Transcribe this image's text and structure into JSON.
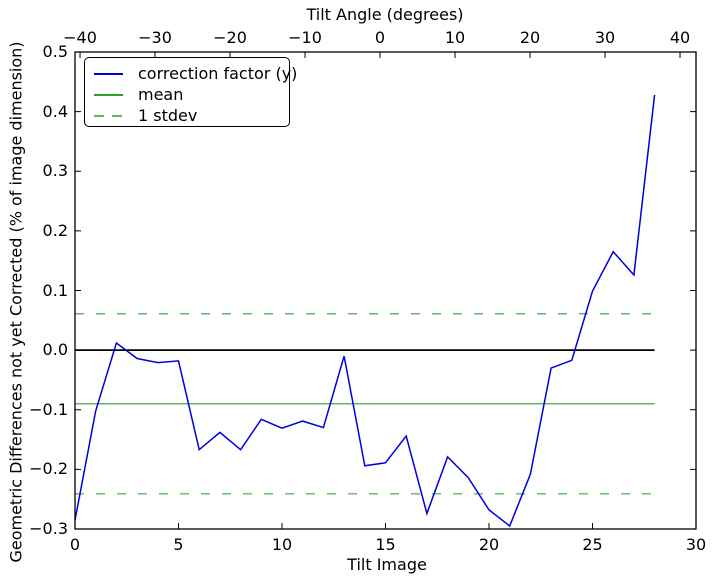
{
  "chart_data": {
    "type": "line",
    "title": "Tilt Angle (degrees)",
    "xlabel": "Tilt Image",
    "ylabel": "Geometric Differences not yet Corrected (% of image dimension)",
    "xlim": [
      0,
      30
    ],
    "ylim": [
      -0.3,
      0.5
    ],
    "grid": false,
    "legend_position": "upper left",
    "x_ticks": {
      "values": [
        0,
        5,
        10,
        15,
        20,
        25,
        30
      ],
      "labels": [
        "0",
        "5",
        "10",
        "15",
        "20",
        "25",
        "30"
      ]
    },
    "y_ticks": {
      "values": [
        0.5,
        0.4,
        0.3,
        0.2,
        0.1,
        0.0,
        -0.1,
        -0.2,
        -0.3
      ],
      "labels": [
        "0.5",
        "0.4",
        "0.3",
        "0.2",
        "0.1",
        "0.0",
        "−0.1",
        "−0.2",
        "−0.3"
      ]
    },
    "top_axis": {
      "title": "Tilt Angle (degrees)",
      "tick_values": [
        -40,
        -30,
        -20,
        -10,
        0,
        10,
        20,
        30,
        40
      ],
      "tick_labels": [
        "−40",
        "−30",
        "−20",
        "−10",
        "0",
        "10",
        "20",
        "30",
        "40"
      ],
      "axis_range": [
        -40.67,
        42.13
      ]
    },
    "zero_line": {
      "value": 0.0,
      "color": "#000000",
      "x_span": [
        0,
        28
      ]
    },
    "series": [
      {
        "name": "correction factor (y)",
        "type": "line",
        "color": "#0000dd",
        "linestyle": "solid",
        "x": [
          0,
          1,
          2,
          3,
          4,
          5,
          6,
          7,
          8,
          9,
          10,
          11,
          12,
          13,
          14,
          15,
          16,
          17,
          18,
          19,
          20,
          21,
          22,
          23,
          24,
          25,
          26,
          27,
          28
        ],
        "y": [
          -0.285,
          -0.102,
          0.012,
          -0.014,
          -0.021,
          -0.018,
          -0.167,
          -0.138,
          -0.167,
          -0.116,
          -0.131,
          -0.119,
          -0.13,
          -0.01,
          -0.194,
          -0.189,
          -0.144,
          -0.274,
          -0.179,
          -0.214,
          -0.268,
          -0.295,
          -0.208,
          -0.03,
          -0.017,
          0.099,
          0.165,
          0.126,
          0.428
        ]
      },
      {
        "name": "mean",
        "type": "hline",
        "color": "#2e9e2e",
        "linestyle": "solid",
        "value": -0.09,
        "x_span": [
          0,
          28
        ]
      },
      {
        "name": "1 stdev",
        "type": "hline",
        "color": "#5fba5f",
        "linestyle": "dashed",
        "values": [
          0.061,
          -0.241
        ],
        "x_span": [
          0,
          28
        ]
      }
    ]
  }
}
